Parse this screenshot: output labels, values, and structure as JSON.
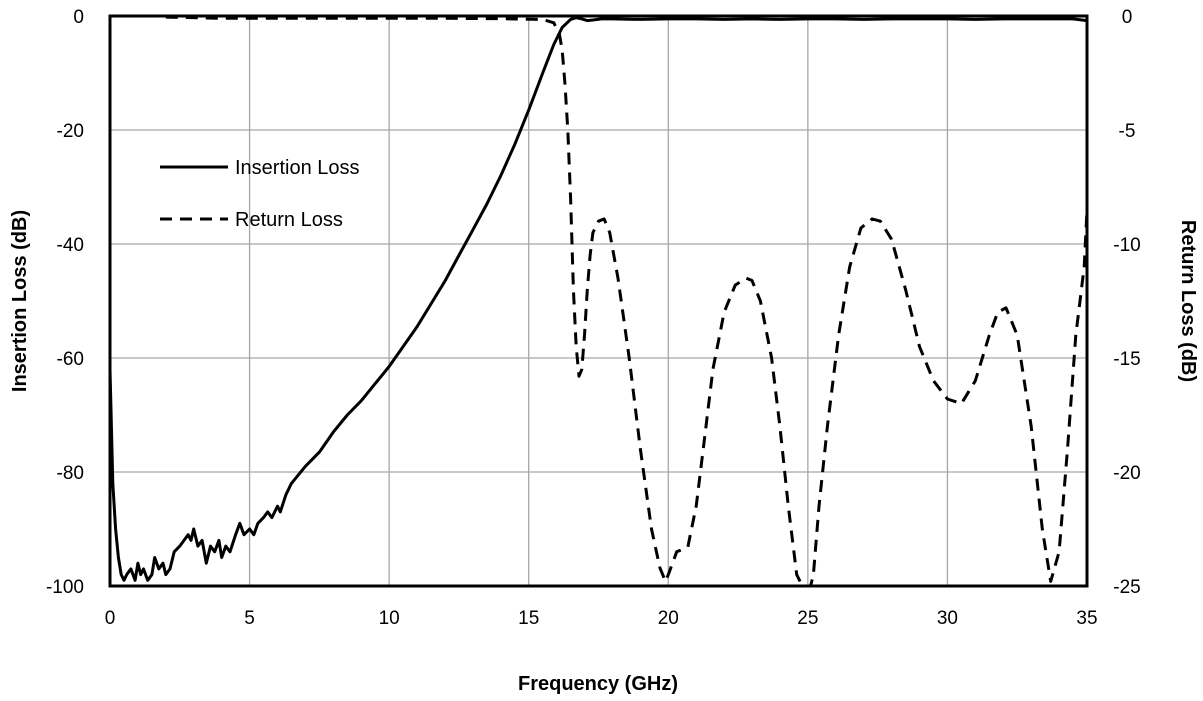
{
  "chart_data": {
    "type": "line",
    "title": "",
    "xlabel": "Frequency (GHz)",
    "ylabel": "Insertion Loss (dB)",
    "y2label": "Return Loss (dB)",
    "xlim": [
      0,
      35
    ],
    "ylim": [
      -100,
      0
    ],
    "y2lim": [
      -25,
      0
    ],
    "x_ticks": [
      "0",
      "5",
      "10",
      "15",
      "20",
      "25",
      "30",
      "35"
    ],
    "y_ticks": [
      "0",
      "-20",
      "-40",
      "-60",
      "-80",
      "-100"
    ],
    "y2_ticks": [
      "0",
      "-5",
      "-10",
      "-15",
      "-20",
      "-25"
    ],
    "grid": true,
    "legend_position": "top-left",
    "series": [
      {
        "name": "Insertion Loss",
        "axis": "left",
        "style": "solid",
        "color": "#000000",
        "x": [
          0.0,
          0.1,
          0.2,
          0.3,
          0.4,
          0.5,
          0.6,
          0.75,
          0.9,
          1.0,
          1.1,
          1.2,
          1.35,
          1.5,
          1.6,
          1.75,
          1.9,
          2.0,
          2.15,
          2.3,
          2.5,
          2.65,
          2.8,
          2.9,
          3.0,
          3.15,
          3.3,
          3.45,
          3.6,
          3.75,
          3.9,
          4.0,
          4.15,
          4.3,
          4.5,
          4.65,
          4.8,
          5.0,
          5.15,
          5.3,
          5.5,
          5.65,
          5.8,
          6.0,
          6.1,
          6.3,
          6.5,
          7.0,
          7.5,
          8.0,
          8.5,
          9.0,
          9.5,
          10.0,
          10.5,
          11.0,
          11.5,
          12.0,
          12.5,
          13.0,
          13.5,
          14.0,
          14.5,
          15.0,
          15.5,
          15.9,
          16.2,
          16.5,
          16.7,
          16.9,
          17.1,
          17.3,
          17.6,
          18.0,
          19.0,
          20.0,
          21.0,
          22.0,
          23.0,
          24.0,
          25.0,
          26.0,
          27.0,
          28.0,
          29.0,
          30.0,
          31.0,
          32.0,
          33.0,
          34.0,
          34.5,
          35.0
        ],
        "values": [
          -62,
          -82,
          -90,
          -95,
          -98,
          -99,
          -98,
          -97,
          -99,
          -96,
          -98,
          -97,
          -99,
          -98,
          -95,
          -97,
          -96,
          -98,
          -97,
          -94,
          -93,
          -92,
          -91,
          -92,
          -90,
          -93,
          -92,
          -96,
          -93,
          -94,
          -92,
          -95,
          -93,
          -94,
          -91,
          -89,
          -91,
          -90,
          -91,
          -89,
          -88,
          -87,
          -88,
          -86,
          -87,
          -84,
          -82,
          -79,
          -76.5,
          -73,
          -70,
          -67.5,
          -64.5,
          -61.5,
          -58,
          -54.5,
          -50.5,
          -46.5,
          -42,
          -37.5,
          -33,
          -28,
          -22.5,
          -16.5,
          -10,
          -5,
          -2,
          -0.6,
          -0.3,
          -0.5,
          -0.8,
          -0.7,
          -0.5,
          -0.5,
          -0.6,
          -0.5,
          -0.5,
          -0.6,
          -0.5,
          -0.6,
          -0.5,
          -0.5,
          -0.6,
          -0.5,
          -0.5,
          -0.5,
          -0.6,
          -0.5,
          -0.5,
          -0.5,
          -0.5,
          -0.8
        ]
      },
      {
        "name": "Return Loss",
        "axis": "right",
        "style": "dashed",
        "color": "#000000",
        "x": [
          2.0,
          4.0,
          6.0,
          8.0,
          10.0,
          12.0,
          14.0,
          15.5,
          15.9,
          16.1,
          16.2,
          16.3,
          16.4,
          16.5,
          16.6,
          16.7,
          16.8,
          16.9,
          17.0,
          17.1,
          17.2,
          17.3,
          17.5,
          17.7,
          17.9,
          18.2,
          18.6,
          19.0,
          19.4,
          19.7,
          19.9,
          20.0,
          20.3,
          20.7,
          21.0,
          21.3,
          21.6,
          22.0,
          22.4,
          22.8,
          23.0,
          23.3,
          23.7,
          24.0,
          24.3,
          24.6,
          24.8,
          24.9,
          25.0,
          25.1,
          25.2,
          25.4,
          25.7,
          26.1,
          26.5,
          26.9,
          27.3,
          27.6,
          28.0,
          28.5,
          29.0,
          29.5,
          30.0,
          30.5,
          31.0,
          31.5,
          31.8,
          32.1,
          32.5,
          33.0,
          33.4,
          33.7,
          34.0,
          34.3,
          34.6,
          34.9,
          35.0
        ],
        "values": [
          -0.05,
          -0.1,
          -0.1,
          -0.1,
          -0.1,
          -0.1,
          -0.12,
          -0.15,
          -0.3,
          -0.8,
          -1.5,
          -3.0,
          -5.0,
          -8.0,
          -12.0,
          -14.5,
          -15.8,
          -15.5,
          -14.0,
          -12.0,
          -10.5,
          -9.5,
          -9.0,
          -8.9,
          -9.5,
          -11.5,
          -15.0,
          -19.0,
          -22.5,
          -24.2,
          -24.8,
          -24.5,
          -23.5,
          -23.3,
          -21.5,
          -18.5,
          -15.5,
          -13.0,
          -11.8,
          -11.5,
          -11.6,
          -12.5,
          -15.0,
          -18.0,
          -21.5,
          -24.5,
          -25.0,
          -25.0,
          -25.0,
          -25.0,
          -24.5,
          -21.5,
          -18.0,
          -14.0,
          -11.0,
          -9.3,
          -8.9,
          -9.0,
          -9.8,
          -12.0,
          -14.5,
          -16.0,
          -16.8,
          -17.0,
          -16.0,
          -14.0,
          -13.0,
          -12.8,
          -14.0,
          -18.0,
          -22.5,
          -24.8,
          -23.5,
          -19.0,
          -14.0,
          -11.0,
          -8.5
        ]
      }
    ]
  }
}
